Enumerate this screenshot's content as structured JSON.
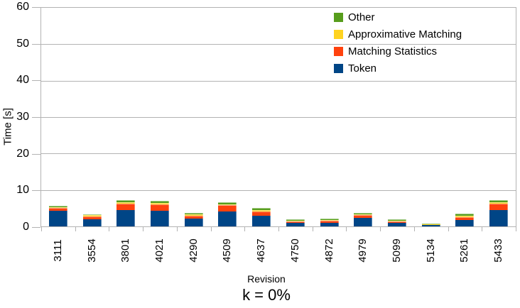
{
  "colors": {
    "grid": "#b3b3b3",
    "token": "#004586",
    "matching_statistics": "#ff420e",
    "approximative_matching": "#ffd320",
    "other": "#579d1c"
  },
  "chart_data": {
    "type": "bar",
    "stacked": true,
    "title": "k = 0%",
    "xlabel": "Revision",
    "ylabel": "Time [s]",
    "ylim": [
      0,
      60
    ],
    "yticks": [
      0,
      10,
      20,
      30,
      40,
      50,
      60
    ],
    "grid": true,
    "legend_position": "top-right-inside",
    "legend_entries": [
      "Other",
      "Approximative Matching",
      "Matching Statistics",
      "Token"
    ],
    "categories": [
      "3111",
      "3554",
      "3801",
      "4021",
      "4290",
      "4509",
      "4637",
      "4750",
      "4872",
      "4979",
      "5099",
      "5134",
      "5261",
      "5433"
    ],
    "series": [
      {
        "name": "Token",
        "color": "#004586",
        "values": [
          4.3,
          1.9,
          4.5,
          4.2,
          2.1,
          4.1,
          2.9,
          1.0,
          1.0,
          2.3,
          0.9,
          0.35,
          1.75,
          4.45
        ]
      },
      {
        "name": "Matching Statistics",
        "color": "#ff420e",
        "values": [
          0.7,
          0.8,
          1.7,
          1.8,
          0.8,
          1.7,
          1.1,
          0.4,
          0.5,
          0.8,
          0.45,
          0.2,
          0.8,
          1.7
        ]
      },
      {
        "name": "Approximative Matching",
        "color": "#ffd320",
        "values": [
          0.3,
          0.35,
          0.5,
          0.5,
          0.4,
          0.3,
          0.45,
          0.2,
          0.2,
          0.2,
          0.25,
          0.1,
          0.4,
          0.5
        ]
      },
      {
        "name": "Other",
        "color": "#579d1c",
        "values": [
          0.3,
          0.35,
          0.5,
          0.5,
          0.4,
          0.5,
          0.55,
          0.3,
          0.4,
          0.4,
          0.3,
          0.2,
          0.55,
          0.55
        ]
      }
    ]
  }
}
